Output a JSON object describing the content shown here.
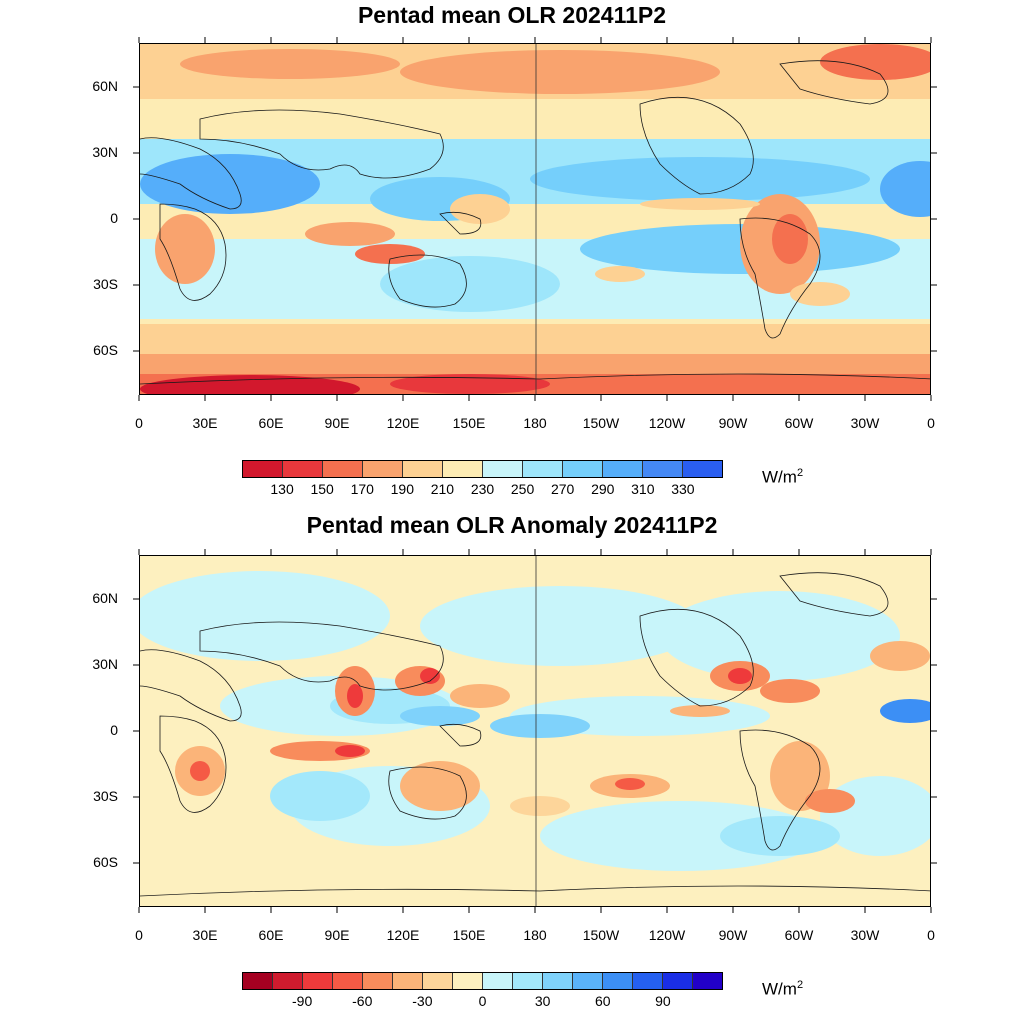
{
  "top_panel": {
    "title": "Pentad mean OLR 202411P2",
    "lat_labels": [
      "60N",
      "30N",
      "0",
      "30S",
      "60S"
    ],
    "lon_labels": [
      "0",
      "30E",
      "60E",
      "90E",
      "120E",
      "150E",
      "180",
      "150W",
      "120W",
      "90W",
      "60W",
      "30W",
      "0"
    ],
    "colorbar": {
      "colors": [
        "#d2182d",
        "#e8383c",
        "#f4704f",
        "#f9a36e",
        "#fdd193",
        "#fdecb4",
        "#c8f5fa",
        "#9ee6fb",
        "#75cffb",
        "#55aefa",
        "#4488f5",
        "#2a5ef0"
      ],
      "labels": [
        "130",
        "150",
        "170",
        "190",
        "210",
        "230",
        "250",
        "270",
        "290",
        "310",
        "330"
      ],
      "unit": "W/m",
      "unit_exp": "2"
    }
  },
  "bottom_panel": {
    "title": "Pentad mean OLR Anomaly 202411P2",
    "lat_labels": [
      "60N",
      "30N",
      "0",
      "30S",
      "60S"
    ],
    "lon_labels": [
      "0",
      "30E",
      "60E",
      "90E",
      "120E",
      "150E",
      "180",
      "150W",
      "120W",
      "90W",
      "60W",
      "30W",
      "0"
    ],
    "colorbar": {
      "colors": [
        "#a50021",
        "#cf1b2e",
        "#ee3a3b",
        "#f55a45",
        "#f88c5c",
        "#fbb479",
        "#fdd59a",
        "#fdf0bf",
        "#c8f5fa",
        "#a3e8fb",
        "#7fd2fb",
        "#5ab3fa",
        "#3c8ff5",
        "#2560f0",
        "#1a2ee6",
        "#2200c8"
      ],
      "labels": [
        "-90",
        "-60",
        "-30",
        "0",
        "30",
        "60",
        "90"
      ],
      "unit": "W/m",
      "unit_exp": "2"
    }
  }
}
